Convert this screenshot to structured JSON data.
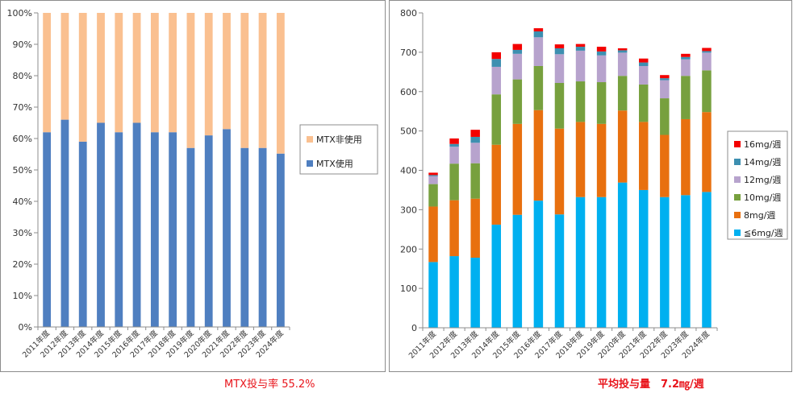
{
  "chart_data": [
    {
      "type": "bar",
      "stacked": true,
      "percent": true,
      "categories": [
        "2011年度",
        "2012年度",
        "2013年度",
        "2014年度",
        "2015年度",
        "2016年度",
        "2017年度",
        "2018年度",
        "2019年度",
        "2020年度",
        "2021年度",
        "2022年度",
        "2023年度",
        "2024年度"
      ],
      "series": [
        {
          "name": "MTX使用",
          "color": "#4f7fc0",
          "values": [
            62,
            66,
            59,
            65,
            62,
            65,
            62,
            62,
            57,
            61,
            63,
            57,
            57,
            55.2
          ]
        },
        {
          "name": "MTX非使用",
          "color": "#fac090",
          "values": [
            38,
            34,
            41,
            35,
            38,
            35,
            38,
            38,
            43,
            39,
            37,
            43,
            43,
            44.8
          ]
        }
      ],
      "yticks": [
        "0%",
        "10%",
        "20%",
        "30%",
        "40%",
        "50%",
        "60%",
        "70%",
        "80%",
        "90%",
        "100%"
      ],
      "ylim": [
        0,
        100
      ],
      "legend_position": "right",
      "grid": false,
      "caption": "MTX投与率 55.2%"
    },
    {
      "type": "bar",
      "stacked": true,
      "categories": [
        "2011年度",
        "2012年度",
        "2013年度",
        "2014年度",
        "2015年度",
        "2016年度",
        "2017年度",
        "2018年度",
        "2019年度",
        "2020年度",
        "2021年度",
        "2022年度",
        "2023年度",
        "2024年度"
      ],
      "series": [
        {
          "name": "≦6mg/週",
          "color": "#00b0f0",
          "values": [
            167,
            182,
            178,
            262,
            287,
            323,
            288,
            332,
            332,
            369,
            350,
            332,
            337,
            345
          ]
        },
        {
          "name": "8mg/週",
          "color": "#e8700f",
          "values": [
            141,
            142,
            150,
            203,
            231,
            230,
            218,
            191,
            186,
            183,
            173,
            158,
            193,
            203
          ]
        },
        {
          "name": "10mg/週",
          "color": "#77a03e",
          "values": [
            57,
            93,
            90,
            128,
            113,
            112,
            116,
            103,
            106,
            88,
            95,
            93,
            110,
            106
          ]
        },
        {
          "name": "12mg/週",
          "color": "#b7a3cd",
          "values": [
            20,
            43,
            52,
            70,
            65,
            73,
            73,
            78,
            68,
            59,
            47,
            46,
            42,
            45
          ]
        },
        {
          "name": "14mg/週",
          "color": "#3d8fb0",
          "values": [
            3,
            7,
            15,
            20,
            10,
            15,
            15,
            10,
            10,
            6,
            9,
            5,
            6,
            4
          ]
        },
        {
          "name": "16mg/週",
          "color": "#f30000",
          "values": [
            6,
            14,
            18,
            17,
            15,
            8,
            10,
            7,
            12,
            5,
            10,
            8,
            8,
            8
          ]
        }
      ],
      "yticks": [
        "0",
        "100",
        "200",
        "300",
        "400",
        "500",
        "600",
        "700",
        "800"
      ],
      "ylim": [
        0,
        800
      ],
      "legend_position": "right",
      "grid": false,
      "caption": "平均投与量　7.2㎎/週"
    }
  ]
}
